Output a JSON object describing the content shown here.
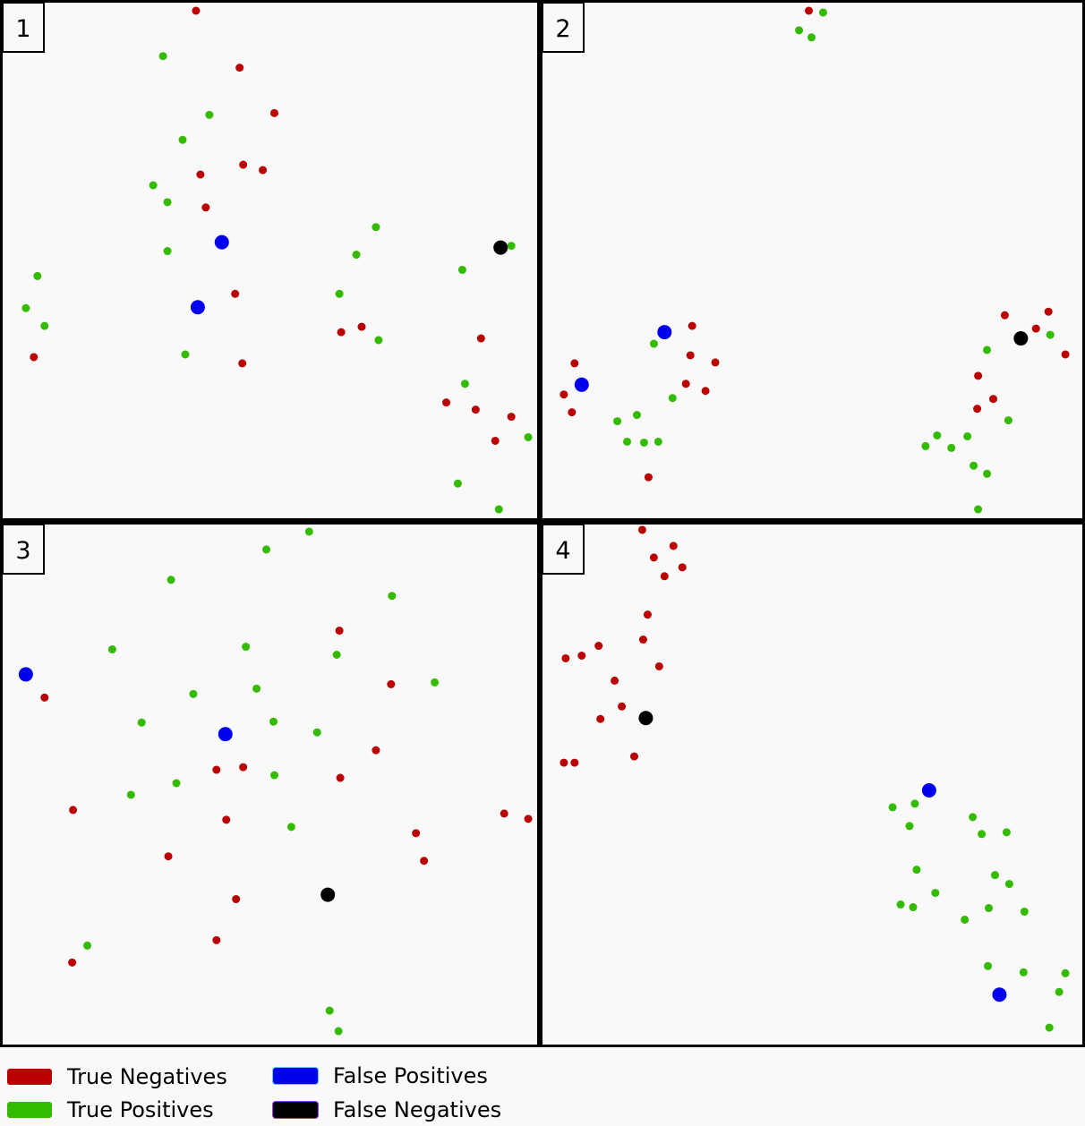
{
  "colors": {
    "background": "#f9f9f9",
    "border": "#000000",
    "true_negative": "#bb0000",
    "true_positive": "#33bb00",
    "false_positive": "#0000ee",
    "false_negative": "#000000"
  },
  "legend": {
    "true_negatives": "True Negatives",
    "true_positives": "True Positives",
    "false_positives": "False Positives",
    "false_negatives": "False Negatives"
  },
  "chart_data": [
    {
      "type": "scatter",
      "panel_label": "1",
      "xlim": [
        0,
        600
      ],
      "ylim": [
        0,
        580
      ],
      "grid": false,
      "series": [
        {
          "name": "True Negatives",
          "points": [
            [
              217,
              9
            ],
            [
              266,
              73
            ],
            [
              305,
              124
            ],
            [
              222,
              193
            ],
            [
              270,
              182
            ],
            [
              292,
              188
            ],
            [
              228,
              230
            ],
            [
              261,
              327
            ],
            [
              269,
              405
            ],
            [
              35,
              398
            ],
            [
              380,
              370
            ],
            [
              403,
              364
            ],
            [
              537,
              377
            ],
            [
              498,
              449
            ],
            [
              531,
              457
            ],
            [
              571,
              465
            ],
            [
              553,
              492
            ]
          ]
        },
        {
          "name": "True Positives",
          "points": [
            [
              180,
              60
            ],
            [
              232,
              126
            ],
            [
              202,
              154
            ],
            [
              169,
              205
            ],
            [
              185,
              224
            ],
            [
              185,
              279
            ],
            [
              39,
              307
            ],
            [
              26,
              343
            ],
            [
              47,
              363
            ],
            [
              205,
              395
            ],
            [
              378,
              327
            ],
            [
              397,
              283
            ],
            [
              419,
              252
            ],
            [
              422,
              379
            ],
            [
              516,
              300
            ],
            [
              571,
              273
            ],
            [
              519,
              428
            ],
            [
              590,
              488
            ],
            [
              511,
              540
            ],
            [
              557,
              569
            ]
          ]
        },
        {
          "name": "False Positives",
          "points": [
            [
              246,
              269
            ],
            [
              219,
              342
            ]
          ]
        },
        {
          "name": "False Negatives",
          "points": [
            [
              559,
              275
            ]
          ]
        }
      ]
    },
    {
      "type": "scatter",
      "panel_label": "2",
      "xlim": [
        0,
        606
      ],
      "ylim": [
        0,
        580
      ],
      "grid": false,
      "series": [
        {
          "name": "True Negatives",
          "points": [
            [
              299,
              9
            ],
            [
              168,
              363
            ],
            [
              36,
              405
            ],
            [
              24,
              440
            ],
            [
              33,
              460
            ],
            [
              166,
              396
            ],
            [
              194,
              404
            ],
            [
              161,
              428
            ],
            [
              183,
              436
            ],
            [
              119,
              533
            ],
            [
              519,
              351
            ],
            [
              568,
              347
            ],
            [
              554,
              366
            ],
            [
              587,
              395
            ],
            [
              489,
              419
            ],
            [
              506,
              445
            ],
            [
              488,
              456
            ]
          ]
        },
        {
          "name": "True Positives",
          "points": [
            [
              315,
              11
            ],
            [
              288,
              31
            ],
            [
              302,
              39
            ],
            [
              125,
              383
            ],
            [
              146,
              444
            ],
            [
              106,
              463
            ],
            [
              84,
              470
            ],
            [
              95,
              493
            ],
            [
              114,
              494
            ],
            [
              130,
              493
            ],
            [
              499,
              390
            ],
            [
              570,
              373
            ],
            [
              523,
              469
            ],
            [
              443,
              486
            ],
            [
              430,
              498
            ],
            [
              459,
              500
            ],
            [
              477,
              487
            ],
            [
              484,
              520
            ],
            [
              499,
              529
            ],
            [
              489,
              569
            ]
          ]
        },
        {
          "name": "False Positives",
          "points": [
            [
              137,
              370
            ],
            [
              44,
              429
            ]
          ]
        },
        {
          "name": "False Negatives",
          "points": [
            [
              537,
              377
            ]
          ]
        }
      ]
    },
    {
      "type": "scatter",
      "panel_label": "3",
      "xlim": [
        0,
        600
      ],
      "ylim": [
        0,
        583
      ],
      "grid": false,
      "series": [
        {
          "name": "True Negatives",
          "points": [
            [
              378,
              119
            ],
            [
              436,
              179
            ],
            [
              47,
              194
            ],
            [
              240,
              275
            ],
            [
              270,
              272
            ],
            [
              379,
              284
            ],
            [
              419,
              253
            ],
            [
              79,
              320
            ],
            [
              251,
              331
            ],
            [
              186,
              372
            ],
            [
              464,
              346
            ],
            [
              473,
              377
            ],
            [
              563,
              324
            ],
            [
              590,
              330
            ],
            [
              262,
              420
            ],
            [
              240,
              466
            ],
            [
              78,
              491
            ]
          ]
        },
        {
          "name": "True Positives",
          "points": [
            [
              344,
              8
            ],
            [
              296,
              28
            ],
            [
              189,
              62
            ],
            [
              437,
              80
            ],
            [
              123,
              140
            ],
            [
              273,
              137
            ],
            [
              375,
              146
            ],
            [
              285,
              184
            ],
            [
              214,
              190
            ],
            [
              485,
              177
            ],
            [
              156,
              222
            ],
            [
              304,
              221
            ],
            [
              353,
              233
            ],
            [
              305,
              281
            ],
            [
              195,
              290
            ],
            [
              144,
              303
            ],
            [
              324,
              339
            ],
            [
              95,
              472
            ],
            [
              367,
              545
            ],
            [
              377,
              568
            ]
          ]
        },
        {
          "name": "False Positives",
          "points": [
            [
              26,
              168
            ],
            [
              250,
              235
            ]
          ]
        },
        {
          "name": "False Negatives",
          "points": [
            [
              365,
              415
            ]
          ]
        }
      ]
    },
    {
      "type": "scatter",
      "panel_label": "4",
      "xlim": [
        0,
        606
      ],
      "ylim": [
        0,
        583
      ],
      "grid": false,
      "series": [
        {
          "name": "True Negatives",
          "points": [
            [
              112,
              6
            ],
            [
              147,
              24
            ],
            [
              125,
              37
            ],
            [
              157,
              48
            ],
            [
              137,
              58
            ],
            [
              118,
              101
            ],
            [
              113,
              129
            ],
            [
              63,
              136
            ],
            [
              44,
              147
            ],
            [
              26,
              150
            ],
            [
              131,
              159
            ],
            [
              81,
              175
            ],
            [
              89,
              204
            ],
            [
              65,
              218
            ],
            [
              103,
              260
            ],
            [
              24,
              267
            ],
            [
              36,
              267
            ]
          ]
        },
        {
          "name": "True Positives",
          "points": [
            [
              393,
              317
            ],
            [
              418,
              313
            ],
            [
              412,
              338
            ],
            [
              483,
              328
            ],
            [
              493,
              347
            ],
            [
              521,
              345
            ],
            [
              420,
              387
            ],
            [
              508,
              393
            ],
            [
              524,
              403
            ],
            [
              402,
              426
            ],
            [
              416,
              429
            ],
            [
              441,
              413
            ],
            [
              501,
              430
            ],
            [
              541,
              434
            ],
            [
              474,
              443
            ],
            [
              500,
              495
            ],
            [
              540,
              502
            ],
            [
              587,
              503
            ],
            [
              580,
              524
            ],
            [
              569,
              564
            ]
          ]
        },
        {
          "name": "False Positives",
          "points": [
            [
              434,
              298
            ],
            [
              513,
              527
            ]
          ]
        },
        {
          "name": "False Negatives",
          "points": [
            [
              116,
              217
            ]
          ]
        }
      ]
    }
  ]
}
